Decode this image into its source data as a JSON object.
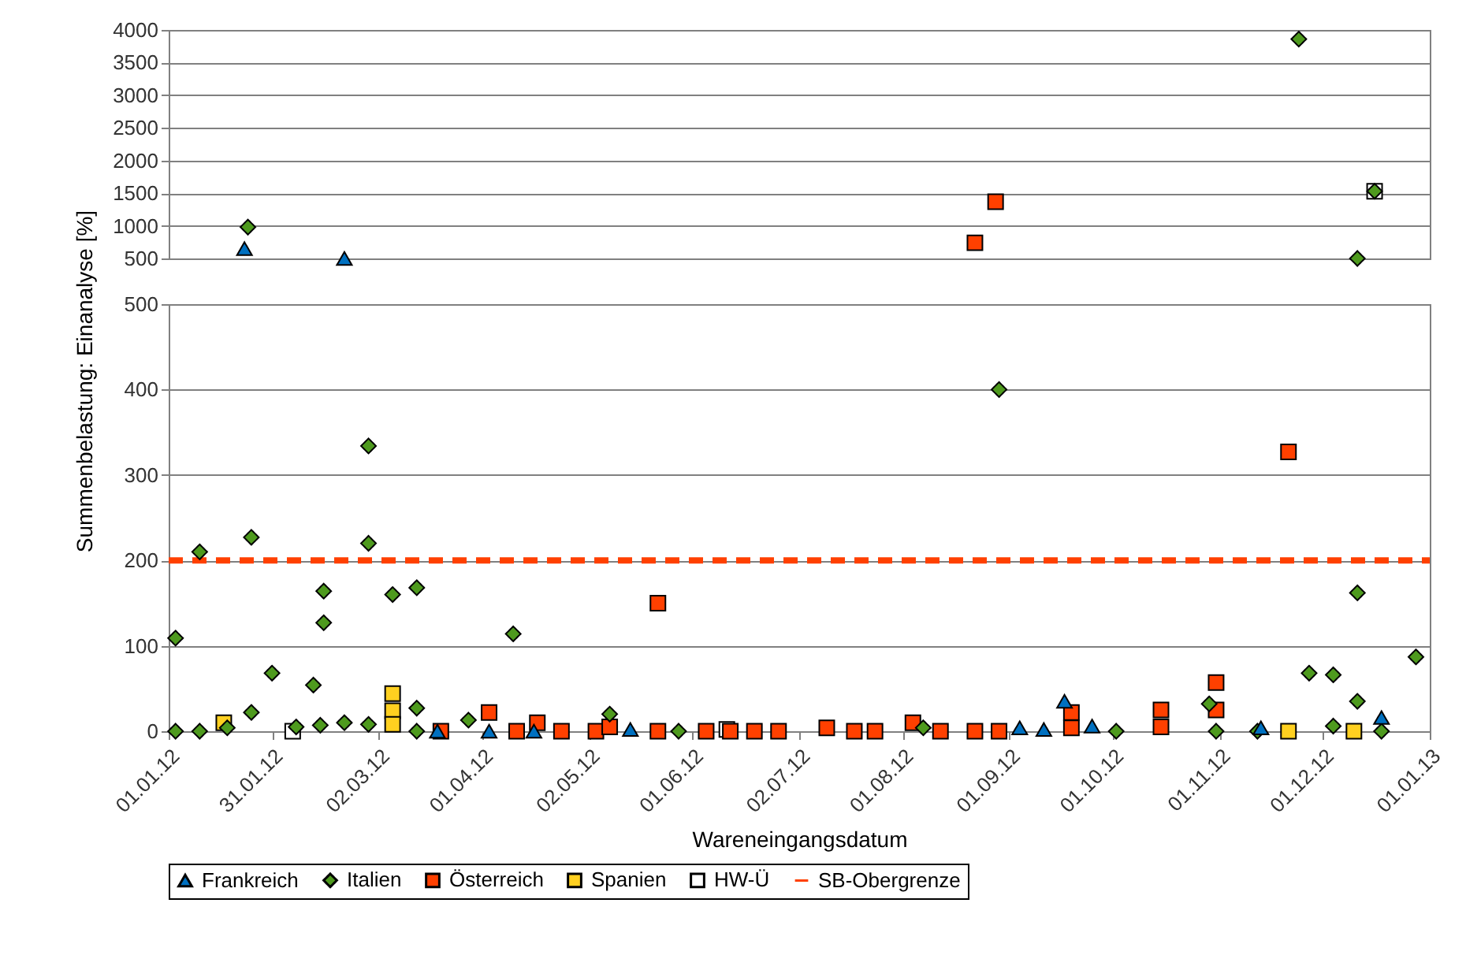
{
  "chart_data": [
    {
      "type": "scatter",
      "ylabel": "Summenbelastung: Einanalyse [%]",
      "xlim": [
        "2012-01-01",
        "2013-01-01"
      ],
      "ylim": [
        500,
        4000
      ],
      "yticks": [
        500,
        1000,
        1500,
        2000,
        2500,
        3000,
        3500,
        4000
      ],
      "grid": "y",
      "tick_labels": "y",
      "series": [
        {
          "color": "#0070c0",
          "marker": "triangle",
          "x": [
            "2012-01-23",
            "2012-02-21"
          ],
          "values": [
            650,
            500
          ]
        },
        {
          "color": "#4e9a1e",
          "marker": "diamond",
          "x": [
            "2012-01-24",
            "2012-11-24",
            "2012-12-11",
            "2012-12-16"
          ],
          "values": [
            980,
            3860,
            500,
            1530
          ]
        },
        {
          "color": "#ff4000",
          "marker": "square",
          "x": [
            "2012-08-22",
            "2012-08-28"
          ],
          "values": [
            740,
            1370
          ]
        },
        {
          "color": "#ffffff",
          "marker": "square",
          "x": [
            "2012-12-16"
          ],
          "values": [
            1530
          ]
        }
      ]
    },
    {
      "type": "scatter",
      "xlabel": "Wareneingangsdatum",
      "xlim": [
        "2012-01-01",
        "2013-01-01"
      ],
      "xticks": [
        {
          "value": "2012-01-01",
          "label": "01.01.12"
        },
        {
          "value": "2012-01-31",
          "label": "31.01.12"
        },
        {
          "value": "2012-03-02",
          "label": "02.03.12"
        },
        {
          "value": "2012-04-01",
          "label": "01.04.12"
        },
        {
          "value": "2012-05-02",
          "label": "02.05.12"
        },
        {
          "value": "2012-06-01",
          "label": "01.06.12"
        },
        {
          "value": "2012-07-02",
          "label": "02.07.12"
        },
        {
          "value": "2012-08-01",
          "label": "01.08.12"
        },
        {
          "value": "2012-09-01",
          "label": "01.09.12"
        },
        {
          "value": "2012-10-01",
          "label": "01.10.12"
        },
        {
          "value": "2012-11-01",
          "label": "01.11.12"
        },
        {
          "value": "2012-12-01",
          "label": "01.12.12"
        },
        {
          "value": "2013-01-01",
          "label": "01.01.13"
        }
      ],
      "ylim": [
        0,
        500
      ],
      "yticks": [
        0,
        100,
        200,
        300,
        400,
        500
      ],
      "grid": "y",
      "legend": "bottom",
      "series": [
        {
          "name": "Frankreich",
          "color": "#0070c0",
          "marker": "triangle",
          "x": [
            "2012-03-19",
            "2012-04-03",
            "2012-04-16",
            "2012-05-14",
            "2012-09-04",
            "2012-09-11",
            "2012-09-17",
            "2012-09-25",
            "2012-11-13",
            "2012-12-18"
          ],
          "values": [
            0,
            0,
            0,
            2,
            4,
            2,
            35,
            6,
            4,
            16
          ]
        },
        {
          "name": "Italien",
          "color": "#4e9a1e",
          "marker": "diamond",
          "x": [
            "2012-01-03",
            "2012-01-03",
            "2012-01-10",
            "2012-01-10",
            "2012-01-18",
            "2012-01-25",
            "2012-01-25",
            "2012-01-31",
            "2012-02-07",
            "2012-02-12",
            "2012-02-14",
            "2012-02-15",
            "2012-02-15",
            "2012-02-21",
            "2012-02-28",
            "2012-02-28",
            "2012-02-28",
            "2012-03-06",
            "2012-03-13",
            "2012-03-13",
            "2012-03-13",
            "2012-03-28",
            "2012-04-10",
            "2012-05-08",
            "2012-05-28",
            "2012-08-07",
            "2012-08-29",
            "2012-10-02",
            "2012-10-29",
            "2012-10-31",
            "2012-11-12",
            "2012-11-27",
            "2012-12-04",
            "2012-12-04",
            "2012-12-11",
            "2012-12-11",
            "2012-12-18",
            "2012-12-28"
          ],
          "values": [
            109,
            0,
            210,
            0,
            4,
            227,
            22,
            68,
            5,
            54,
            7,
            164,
            127,
            10,
            334,
            220,
            8,
            160,
            168,
            27,
            0,
            13,
            114,
            20,
            0,
            4,
            400,
            0,
            32,
            0,
            0,
            68,
            66,
            6,
            162,
            35,
            0,
            87
          ]
        },
        {
          "name": "Österreich",
          "color": "#ff4000",
          "marker": "square",
          "x": [
            "2012-03-20",
            "2012-04-03",
            "2012-04-11",
            "2012-04-17",
            "2012-04-24",
            "2012-05-04",
            "2012-05-08",
            "2012-05-22",
            "2012-05-22",
            "2012-06-05",
            "2012-06-12",
            "2012-06-19",
            "2012-06-26",
            "2012-07-10",
            "2012-07-18",
            "2012-07-24",
            "2012-08-04",
            "2012-08-12",
            "2012-08-22",
            "2012-08-29",
            "2012-09-19",
            "2012-09-19",
            "2012-10-15",
            "2012-10-15",
            "2012-10-31",
            "2012-10-31",
            "2012-11-21"
          ],
          "values": [
            0,
            22,
            0,
            10,
            0,
            0,
            5,
            150,
            0,
            0,
            0,
            0,
            0,
            4,
            0,
            0,
            10,
            0,
            0,
            0,
            4,
            22,
            25,
            5,
            57,
            25,
            327
          ]
        },
        {
          "name": "Spanien",
          "color": "#ffd020",
          "marker": "square",
          "x": [
            "2012-01-17",
            "2012-03-06",
            "2012-03-06",
            "2012-03-06",
            "2012-11-21",
            "2012-12-10"
          ],
          "values": [
            10,
            44,
            24,
            8,
            0,
            0
          ]
        },
        {
          "name": "HW-Ü",
          "color": "#ffffff",
          "marker": "square",
          "x": [
            "2012-02-06",
            "2012-06-11"
          ],
          "values": [
            0,
            2
          ]
        },
        {
          "name": "SB-Obergrenze",
          "type": "line",
          "color": "#ff4000",
          "line_style": "dashed",
          "x": [
            "2012-01-01",
            "2013-01-01"
          ],
          "values": [
            200,
            200
          ]
        }
      ]
    }
  ]
}
